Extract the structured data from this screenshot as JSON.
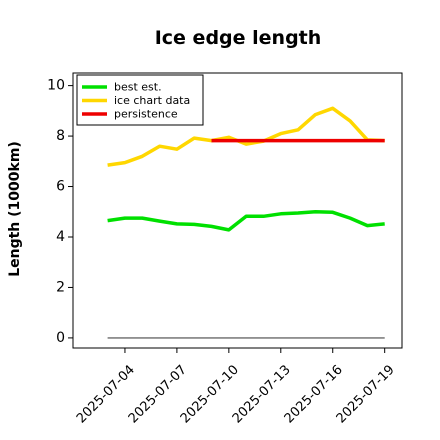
{
  "chart_data": {
    "type": "line",
    "title": "Ice edge length",
    "xlabel": "",
    "ylabel": "Length (1000km)",
    "ylim": [
      -0.4,
      10.5
    ],
    "yticks": [
      0,
      2,
      4,
      6,
      8,
      10
    ],
    "xlim": [
      "2025-07-01",
      "2025-07-20"
    ],
    "xticks": [
      "2025-07-04",
      "2025-07-07",
      "2025-07-10",
      "2025-07-13",
      "2025-07-16",
      "2025-07-19"
    ],
    "grid": false,
    "legend_position": "top-left",
    "series": [
      {
        "name": "best est.",
        "color": "#00e000",
        "x": [
          "2025-07-03",
          "2025-07-04",
          "2025-07-05",
          "2025-07-06",
          "2025-07-07",
          "2025-07-08",
          "2025-07-09",
          "2025-07-10",
          "2025-07-11",
          "2025-07-12",
          "2025-07-13",
          "2025-07-14",
          "2025-07-15",
          "2025-07-16",
          "2025-07-17",
          "2025-07-18",
          "2025-07-19"
        ],
        "values": [
          4.65,
          4.75,
          4.75,
          4.63,
          4.52,
          4.5,
          4.42,
          4.28,
          4.82,
          4.82,
          4.92,
          4.95,
          5.0,
          4.98,
          4.75,
          4.45,
          4.52
        ]
      },
      {
        "name": "ice chart data",
        "color": "#ffd700",
        "x": [
          "2025-07-03",
          "2025-07-04",
          "2025-07-05",
          "2025-07-06",
          "2025-07-07",
          "2025-07-08",
          "2025-07-09",
          "2025-07-10",
          "2025-07-11",
          "2025-07-12",
          "2025-07-13",
          "2025-07-14",
          "2025-07-15",
          "2025-07-16",
          "2025-07-17",
          "2025-07-18",
          "2025-07-19"
        ],
        "values": [
          6.85,
          6.95,
          7.2,
          7.6,
          7.48,
          7.92,
          7.82,
          7.95,
          7.68,
          7.8,
          8.1,
          8.25,
          8.85,
          9.1,
          8.6,
          7.85,
          7.82
        ]
      },
      {
        "name": "persistence",
        "color": "#ee0000",
        "x": [
          "2025-07-09",
          "2025-07-19"
        ],
        "values": [
          7.82,
          7.82
        ]
      },
      {
        "name": "",
        "color": "#808080",
        "x": [
          "2025-07-03",
          "2025-07-19"
        ],
        "values": [
          0,
          0
        ]
      }
    ]
  }
}
